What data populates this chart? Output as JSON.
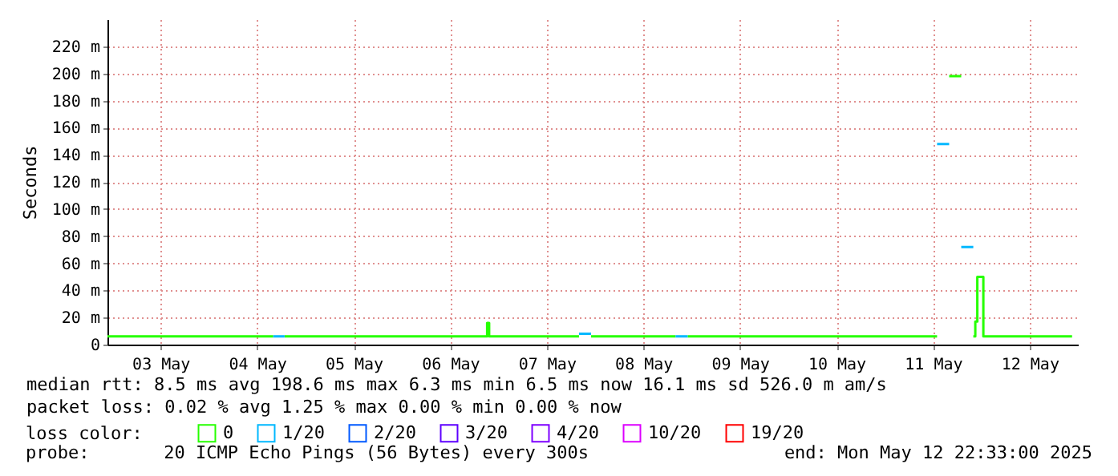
{
  "chart_data": {
    "type": "step",
    "ylabel": "Seconds",
    "legend_title": "loss color:",
    "xlim": [
      "2025-05-02T22:48",
      "2025-05-13T00:00"
    ],
    "xticks": [
      {
        "value": "2025-05-03T12:00",
        "label": "03 May"
      },
      {
        "value": "2025-05-04T12:00",
        "label": "04 May"
      },
      {
        "value": "2025-05-05T12:00",
        "label": "05 May"
      },
      {
        "value": "2025-05-06T12:00",
        "label": "06 May"
      },
      {
        "value": "2025-05-07T12:00",
        "label": "07 May"
      },
      {
        "value": "2025-05-08T12:00",
        "label": "08 May"
      },
      {
        "value": "2025-05-09T12:00",
        "label": "09 May"
      },
      {
        "value": "2025-05-10T12:00",
        "label": "10 May"
      },
      {
        "value": "2025-05-11T12:00",
        "label": "11 May"
      },
      {
        "value": "2025-05-12T12:00",
        "label": "12 May"
      }
    ],
    "ylim": [
      0,
      240
    ],
    "yticks": [
      0,
      {
        "value": 20,
        "label": "20 m"
      },
      {
        "value": 40,
        "label": "40 m"
      },
      {
        "value": 60,
        "label": "60 m"
      },
      {
        "value": 80,
        "label": "80 m"
      },
      {
        "value": 100,
        "label": "100 m"
      },
      {
        "value": 120,
        "label": "120 m"
      },
      {
        "value": 140,
        "label": "140 m"
      },
      {
        "value": 160,
        "label": "160 m"
      },
      {
        "value": 180,
        "label": "180 m"
      },
      {
        "value": 200,
        "label": "200 m"
      },
      {
        "value": 220,
        "label": "220 m"
      }
    ],
    "grid": true,
    "legend": "bottom",
    "series": [
      {
        "name": "0",
        "color": "#26ff00",
        "x": [
          "2025-05-02T22:48",
          "2025-05-04T16:00",
          "2025-05-04T17:00",
          "2025-05-04T18:50",
          "2025-05-06T21:10",
          "2025-05-06T21:40",
          "2025-05-07T20:00",
          "2025-05-07T21:30",
          "2025-05-07T23:00",
          "2025-05-08T20:00",
          "2025-05-08T21:40",
          "2025-05-08T23:00",
          "2025-05-11T13:00",
          "2025-05-11T14:00",
          "2025-05-11T16:00",
          "2025-05-11T19:00",
          "2025-05-11T20:00",
          "2025-05-11T22:00",
          "2025-05-11T22:30",
          "2025-05-11T23:00",
          "2025-05-12T00:30",
          "2025-05-12T22:33"
        ],
        "values": [
          6,
          6,
          null,
          6,
          16,
          6,
          6,
          null,
          6,
          6,
          null,
          6,
          6,
          null,
          198,
          198,
          null,
          6,
          17,
          50,
          6,
          6
        ]
      },
      {
        "name": "1/20",
        "color": "#00b8ff",
        "x": [
          "2025-05-04T16:00",
          "2025-05-04T18:50",
          "2025-05-05T00:00",
          "2025-05-07T20:00",
          "2025-05-07T23:00",
          "2025-05-08T00:00",
          "2025-05-08T20:00",
          "2025-05-08T23:00",
          "2025-05-09T00:00",
          "2025-05-11T13:00",
          "2025-05-11T16:00",
          "2025-05-11T17:00",
          "2025-05-11T19:00",
          "2025-05-11T22:00"
        ],
        "values": [
          6,
          6,
          null,
          8,
          8,
          null,
          6,
          6,
          null,
          148,
          148,
          null,
          72,
          72
        ]
      },
      {
        "name": "2/20",
        "color": "#0059ff"
      },
      {
        "name": "3/20",
        "color": "#5e00ff"
      },
      {
        "name": "4/20",
        "color": "#7e00ff"
      },
      {
        "name": "10/20",
        "color": "#dd00ff"
      },
      {
        "name": "19/20",
        "color": "#ff0000"
      }
    ],
    "annotations": [
      "median rtt:  8.5 ms avg  198.6 ms max  6.3 ms min  6.5 ms now  16.1 ms sd  526.0 m am/s",
      "packet loss: 0.02 % avg  1.25 % max  0.00 % min  0.00 % now",
      "probe:       20 ICMP Echo Pings (56 Bytes) every 300s",
      "end: Mon May 12 22:33:00 2025"
    ]
  }
}
